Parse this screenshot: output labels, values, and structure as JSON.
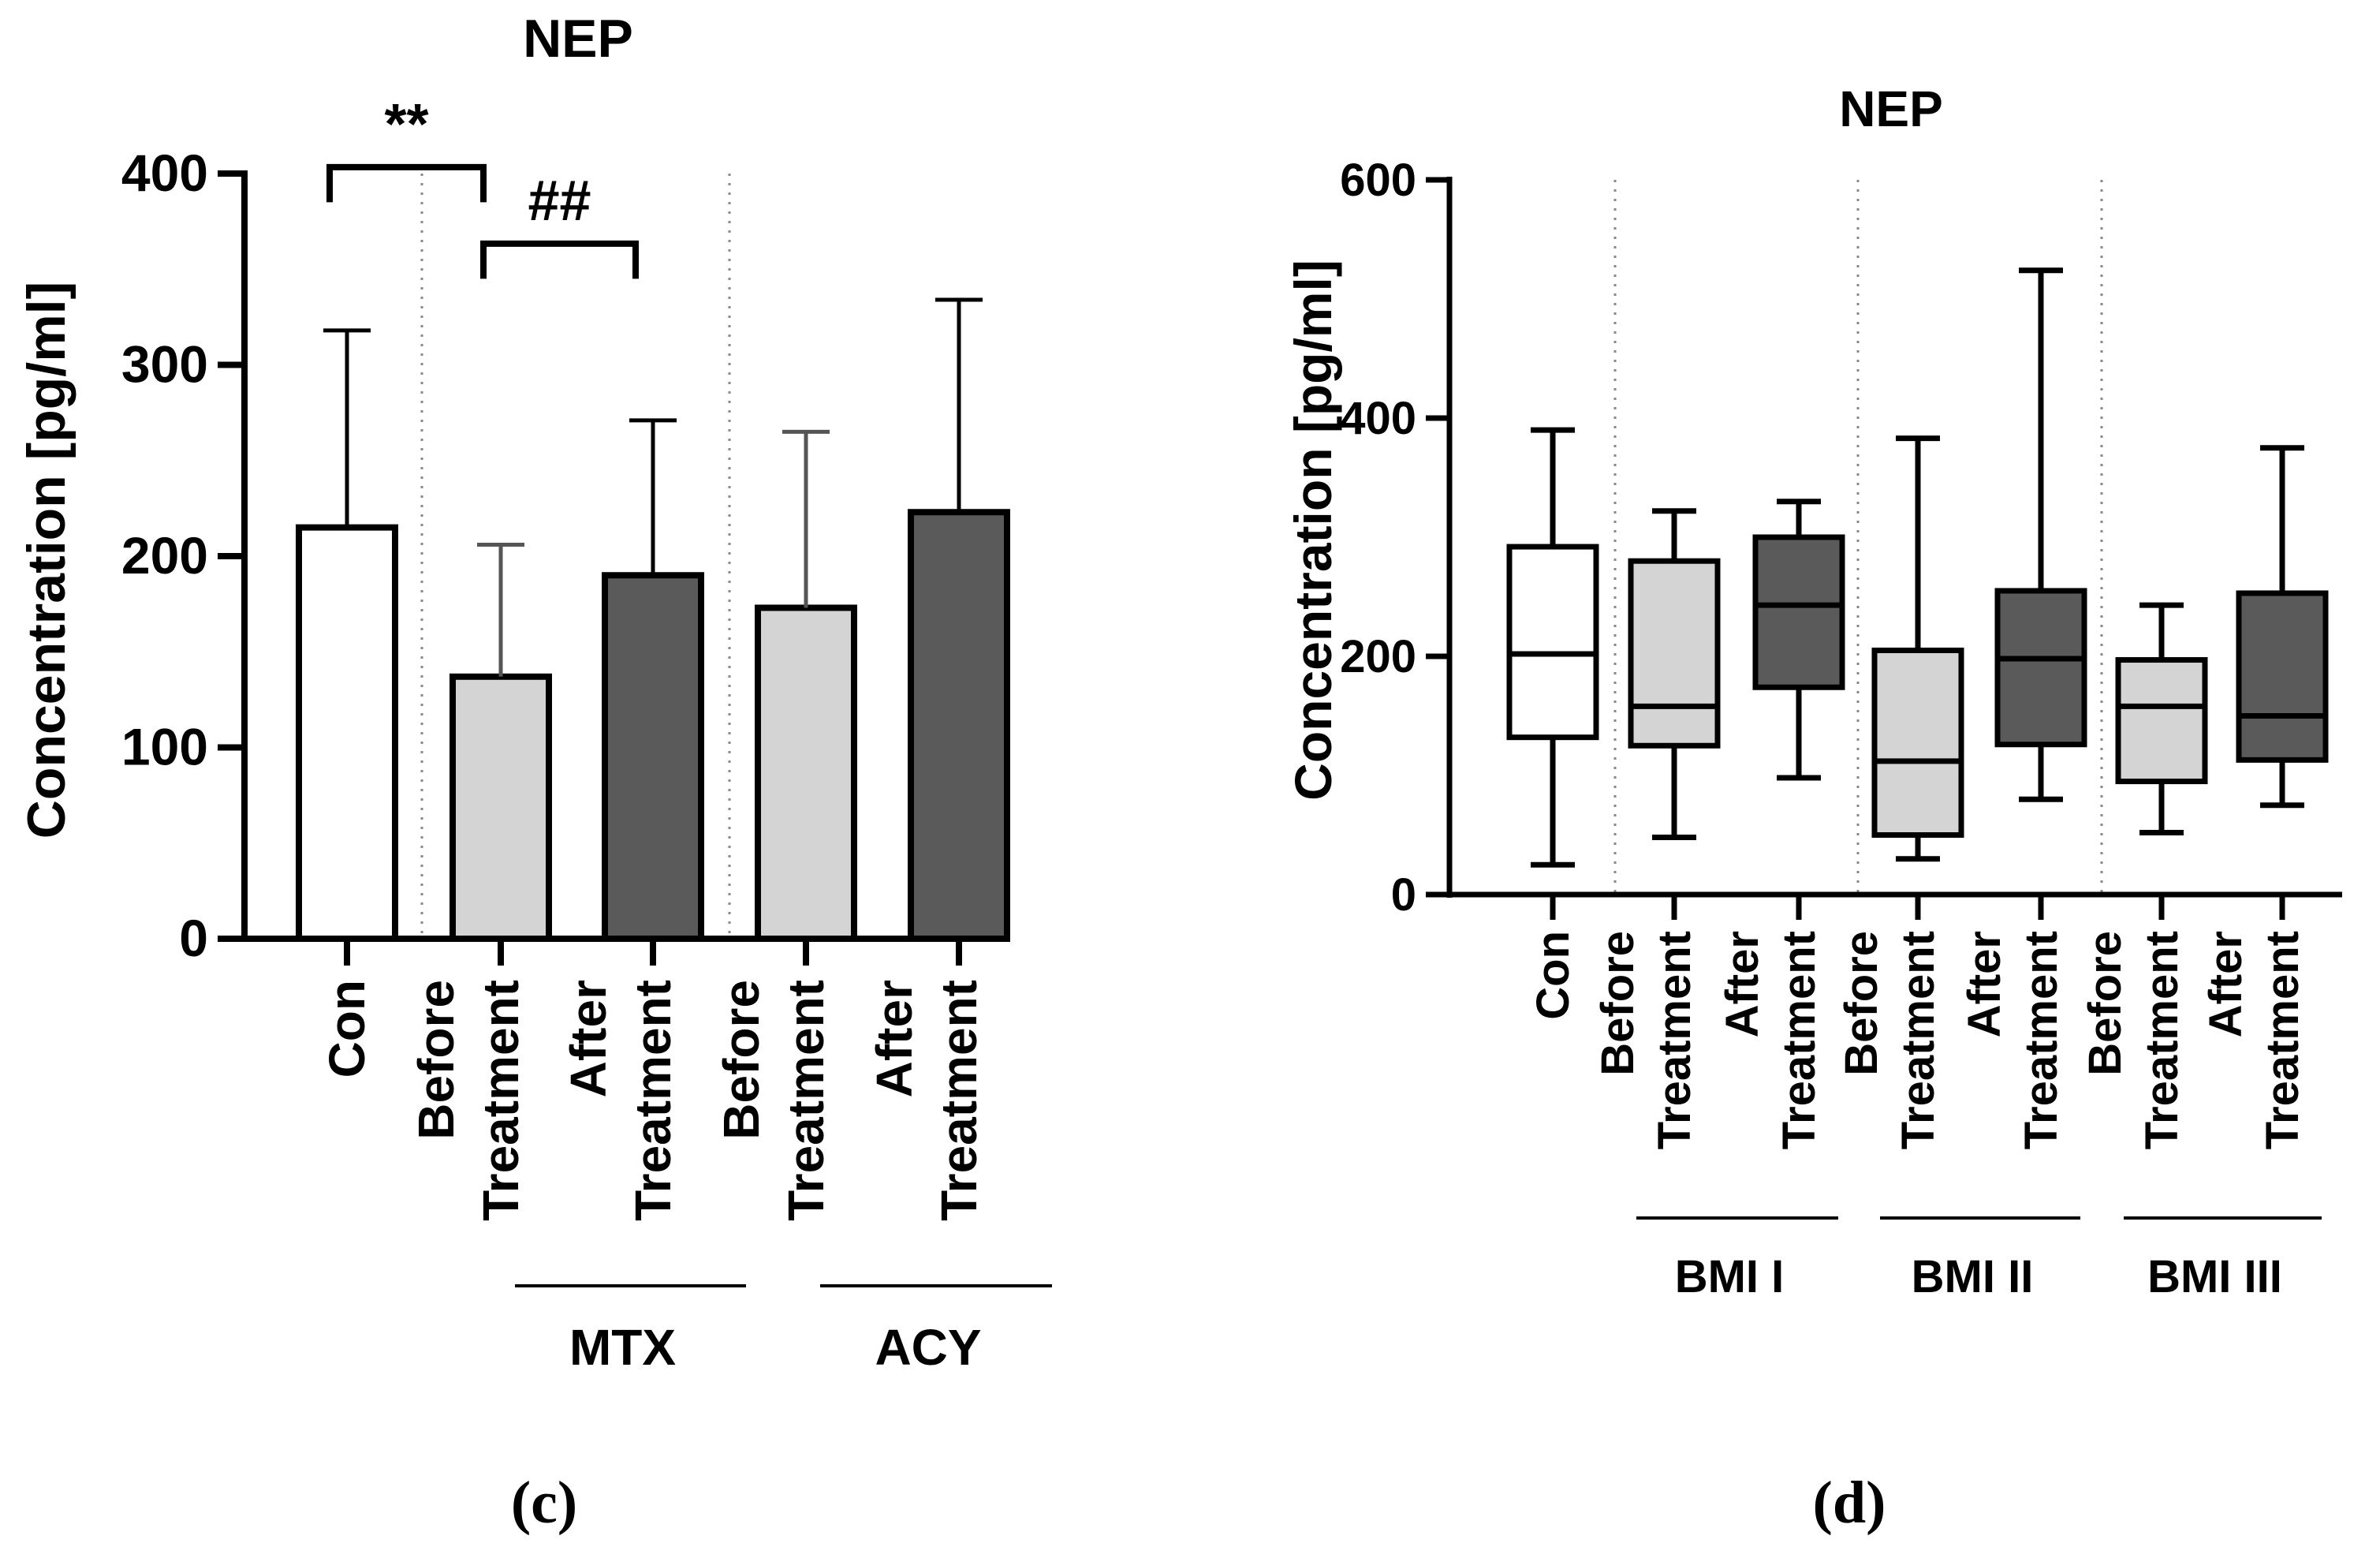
{
  "colors": {
    "con": "#ffffff",
    "before": "#d4d4d4",
    "after": "#5a5a5a",
    "stroke": "#000000",
    "error_bar_light": "#555555",
    "divider": "#888888"
  },
  "chart_data": [
    {
      "panel_label": "(c)",
      "type": "bar",
      "title": "NEP",
      "ylabel": "Concentration [pg/ml]",
      "xlabel": "",
      "ylim": [
        0,
        400
      ],
      "yticks": [
        0,
        100,
        200,
        300,
        400
      ],
      "categories": [
        {
          "lines": [
            "Con"
          ],
          "value": 215,
          "error_upper": 318,
          "fill": "con"
        },
        {
          "lines": [
            "Before",
            "Treatment"
          ],
          "value": 137,
          "error_upper": 206,
          "fill": "before"
        },
        {
          "lines": [
            "After",
            "Treatment"
          ],
          "value": 190,
          "error_upper": 271,
          "fill": "after"
        },
        {
          "lines": [
            "Before",
            "Treatment"
          ],
          "value": 173,
          "error_upper": 265,
          "fill": "before"
        },
        {
          "lines": [
            "After",
            "Treatment"
          ],
          "value": 223,
          "error_upper": 334,
          "fill": "after"
        }
      ],
      "groups": [
        {
          "label": "MTX",
          "from": 1,
          "to": 2
        },
        {
          "label": "ACY",
          "from": 3,
          "to": 4
        }
      ],
      "significance": [
        {
          "label": "**",
          "from": 0,
          "to": 1,
          "y": 405,
          "drop": 20
        },
        {
          "label": "##",
          "from": 1,
          "to": 2,
          "y": 365,
          "drop": 20
        }
      ]
    },
    {
      "panel_label": "(d)",
      "type": "box",
      "title": "NEP",
      "ylabel": "Concentration [pg/ml]",
      "xlabel": "",
      "ylim": [
        0,
        600
      ],
      "yticks": [
        0,
        200,
        400,
        600
      ],
      "categories": [
        {
          "lines": [
            "Con"
          ],
          "min": 25,
          "q1": 132,
          "median": 202,
          "q3": 292,
          "max": 390,
          "fill": "con"
        },
        {
          "lines": [
            "Before",
            "Treatment"
          ],
          "min": 48,
          "q1": 125,
          "median": 158,
          "q3": 280,
          "max": 322,
          "fill": "before"
        },
        {
          "lines": [
            "After",
            "Treatment"
          ],
          "min": 98,
          "q1": 174,
          "median": 243,
          "q3": 300,
          "max": 330,
          "fill": "after"
        },
        {
          "lines": [
            "Before",
            "Treatment"
          ],
          "min": 30,
          "q1": 50,
          "median": 112,
          "q3": 205,
          "max": 383,
          "fill": "before"
        },
        {
          "lines": [
            "After",
            "Treatment"
          ],
          "min": 80,
          "q1": 126,
          "median": 198,
          "q3": 255,
          "max": 524,
          "fill": "after"
        },
        {
          "lines": [
            "Before",
            "Treatment"
          ],
          "min": 52,
          "q1": 95,
          "median": 158,
          "q3": 197,
          "max": 243,
          "fill": "before"
        },
        {
          "lines": [
            "After",
            "Treatment"
          ],
          "min": 75,
          "q1": 113,
          "median": 150,
          "q3": 253,
          "max": 375,
          "fill": "after"
        }
      ],
      "groups": [
        {
          "label": "BMI I",
          "from": 1,
          "to": 2
        },
        {
          "label": "BMI II",
          "from": 3,
          "to": 4
        },
        {
          "label": "BMI III",
          "from": 5,
          "to": 6
        }
      ]
    }
  ]
}
